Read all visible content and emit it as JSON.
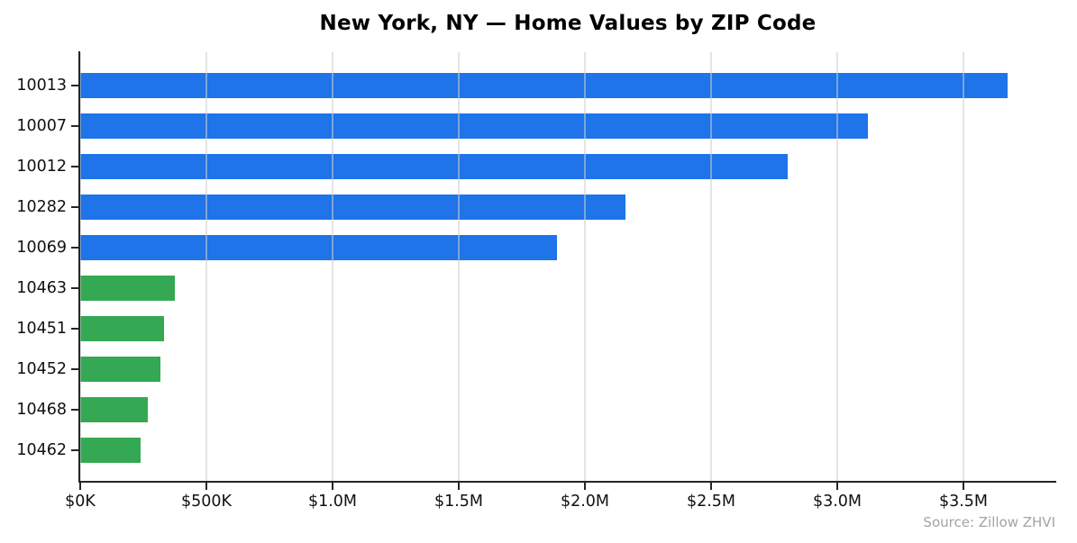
{
  "title": "New York, NY — Home Values by ZIP Code",
  "source_note": "Source: Zillow ZHVI",
  "chart_data": {
    "type": "bar",
    "orientation": "horizontal",
    "title": "New York, NY — Home Values by ZIP Code",
    "xlabel": "",
    "ylabel": "",
    "categories": [
      "10013",
      "10007",
      "10012",
      "10282",
      "10069",
      "10463",
      "10451",
      "10452",
      "10468",
      "10462"
    ],
    "values": [
      3675000,
      3120000,
      2805000,
      2160000,
      1890000,
      375000,
      333000,
      319000,
      268000,
      239000
    ],
    "bar_colors": [
      "#1E74E8",
      "#1E74E8",
      "#1E74E8",
      "#1E74E8",
      "#1E74E8",
      "#34A853",
      "#34A853",
      "#34A853",
      "#34A853",
      "#34A853"
    ],
    "x_tick_values": [
      0,
      500000,
      1000000,
      1500000,
      2000000,
      2500000,
      3000000,
      3500000
    ],
    "x_tick_labels": [
      "$0K",
      "$500K",
      "$1.0M",
      "$1.5M",
      "$2.0M",
      "$2.5M",
      "$3.0M",
      "$3.5M"
    ],
    "xlim": [
      0,
      3864286
    ],
    "grid": "vertical",
    "legend": "none",
    "source": "Source: Zillow ZHVI",
    "colors": {
      "blue_series": "#1E74E8",
      "green_series": "#34A853",
      "gridline": "#E6E6E6",
      "spine": "#262626",
      "tick_text": "#111111",
      "source_text": "#A3A3A3"
    }
  }
}
